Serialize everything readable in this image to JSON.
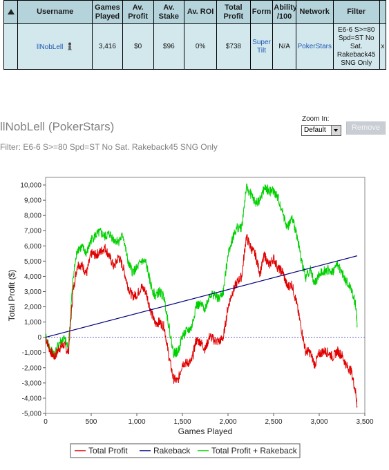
{
  "table": {
    "headers": [
      "",
      "Username",
      "Games Played",
      "Av. Profit",
      "Av. Stake",
      "Av. ROI",
      "Total Profit",
      "Form",
      "Ability /100",
      "Network",
      "Filter"
    ],
    "row": {
      "username": "llNobLell",
      "games_played": "3,416",
      "av_profit": "$0",
      "av_stake": "$96",
      "av_roi": "0%",
      "total_profit": "$738",
      "form": "Super Tilt",
      "ability": "N/A",
      "network": "PokerStars",
      "filter": "E6-6 S>=80 Spd=ST No Sat. Rakeback45 SNG Only",
      "remove": "x"
    }
  },
  "title": "llNobLell (PokerStars)",
  "filter_line": "Filter: E6-6 S>=80 Spd=ST No Sat. Rakeback45 SNG Only",
  "zoom": {
    "label": "Zoom In:",
    "selected": "Default"
  },
  "remove_button": "Remove",
  "colors": {
    "profit": "#e00000",
    "rakeback": "#000080",
    "total_rakeback": "#00d000",
    "header_bg": "#b4d3db",
    "cell_bg": "#d3e8ed",
    "link": "#1e56b0"
  },
  "chart_data": {
    "type": "line",
    "xlabel": "Games Played",
    "ylabel": "Total Profit ($)",
    "xlim": [
      0,
      3500
    ],
    "ylim": [
      -5000,
      10500
    ],
    "xticks": [
      0,
      500,
      1000,
      1500,
      2000,
      2500,
      3000,
      3500
    ],
    "xtick_labels": [
      "0",
      "500",
      "1,000",
      "1,500",
      "2,000",
      "2,500",
      "3,000",
      "3,500"
    ],
    "yticks": [
      -5000,
      -4000,
      -3000,
      -2000,
      -1000,
      0,
      1000,
      2000,
      3000,
      4000,
      5000,
      6000,
      7000,
      8000,
      9000,
      10000
    ],
    "ytick_labels": [
      "-5,000",
      "-4,000",
      "-3,000",
      "-2,000",
      "-1,000",
      "0",
      "1,000",
      "2,000",
      "3,000",
      "4,000",
      "5,000",
      "6,000",
      "7,000",
      "8,000",
      "9,000",
      "10,000"
    ],
    "legend_placement": "bottom",
    "series": [
      {
        "name": "Total Profit",
        "color": "#e00000",
        "x": [
          0,
          50,
          100,
          150,
          200,
          250,
          300,
          350,
          400,
          450,
          500,
          550,
          600,
          650,
          700,
          750,
          800,
          850,
          900,
          950,
          1000,
          1050,
          1100,
          1150,
          1200,
          1250,
          1300,
          1350,
          1400,
          1450,
          1500,
          1550,
          1600,
          1650,
          1700,
          1750,
          1800,
          1850,
          1900,
          1950,
          2000,
          2050,
          2100,
          2150,
          2200,
          2250,
          2300,
          2350,
          2400,
          2450,
          2500,
          2550,
          2600,
          2650,
          2700,
          2750,
          2800,
          2850,
          2900,
          2950,
          3000,
          3050,
          3100,
          3150,
          3200,
          3250,
          3300,
          3350,
          3400,
          3416
        ],
        "y": [
          0,
          -900,
          -1300,
          -700,
          -500,
          -1000,
          3000,
          4800,
          4700,
          4200,
          5500,
          5400,
          5600,
          5900,
          5300,
          4600,
          5300,
          4600,
          3400,
          2700,
          2800,
          3300,
          3000,
          1800,
          900,
          1000,
          700,
          -1200,
          -2700,
          -2900,
          -1700,
          -1700,
          -1600,
          -200,
          -300,
          -800,
          100,
          -200,
          -300,
          0,
          2000,
          3000,
          3600,
          4000,
          6600,
          5900,
          5400,
          4200,
          5400,
          4700,
          5200,
          4500,
          4300,
          3300,
          3500,
          2300,
          700,
          -900,
          -1000,
          -1800,
          -1100,
          -900,
          -1000,
          -1300,
          -900,
          -1200,
          -1900,
          -2200,
          -3600,
          -4600
        ]
      },
      {
        "name": "Rakeback",
        "color": "#000080",
        "x": [
          0,
          3416
        ],
        "y": [
          0,
          5350
        ]
      },
      {
        "name": "Total Profit + Rakeback",
        "color": "#00d000",
        "x": [
          0,
          50,
          100,
          150,
          200,
          250,
          300,
          350,
          400,
          450,
          500,
          550,
          600,
          650,
          700,
          750,
          800,
          850,
          900,
          950,
          1000,
          1050,
          1100,
          1150,
          1200,
          1250,
          1300,
          1350,
          1400,
          1450,
          1500,
          1550,
          1600,
          1650,
          1700,
          1750,
          1800,
          1850,
          1900,
          1950,
          2000,
          2050,
          2100,
          2150,
          2200,
          2250,
          2300,
          2350,
          2400,
          2450,
          2500,
          2550,
          2600,
          2650,
          2700,
          2750,
          2800,
          2850,
          2900,
          2950,
          3000,
          3050,
          3100,
          3150,
          3200,
          3250,
          3300,
          3350,
          3400,
          3416
        ],
        "y": [
          0,
          -800,
          -1100,
          -400,
          -100,
          -700,
          3900,
          5800,
          5900,
          5500,
          6400,
          6700,
          6900,
          6600,
          6800,
          6400,
          6300,
          6700,
          5000,
          4300,
          4500,
          5000,
          4900,
          3500,
          2700,
          3000,
          2600,
          800,
          -1000,
          -1000,
          100,
          400,
          600,
          2100,
          2100,
          1900,
          2800,
          2800,
          2500,
          3000,
          5500,
          6500,
          7200,
          7200,
          9800,
          9400,
          8800,
          9000,
          9800,
          9600,
          9600,
          9100,
          8200,
          7200,
          7800,
          6900,
          5200,
          3900,
          4500,
          3500,
          4100,
          4400,
          4400,
          4300,
          4800,
          4200,
          3600,
          3200,
          2100,
          800
        ]
      }
    ]
  }
}
